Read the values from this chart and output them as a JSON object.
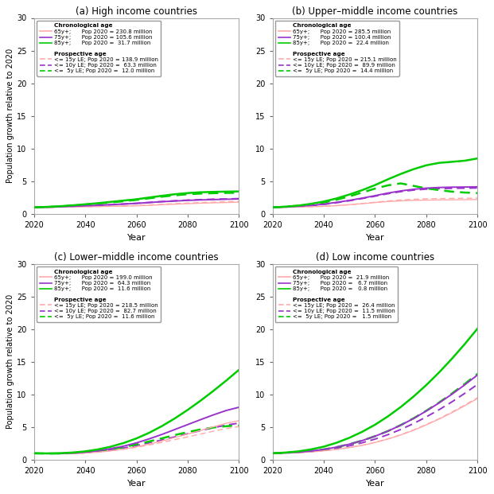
{
  "panels": [
    {
      "title": "(a) High income countries",
      "ylim": [
        0,
        30
      ],
      "legend_chron": {
        "header": "Chronological age",
        "entries": [
          {
            "label": "65y+;      Pop 2020 = 230.8 million",
            "color": "#ffaaaa",
            "linestyle": "solid"
          },
          {
            "label": "75y+;      Pop 2020 = 105.6 million",
            "color": "#9933cc",
            "linestyle": "solid"
          },
          {
            "label": "85y+;      Pop 2020 =  31.7 million",
            "color": "#00cc00",
            "linestyle": "solid"
          }
        ]
      },
      "legend_prosp": {
        "header": "Prospective age",
        "entries": [
          {
            "label": "<= 15y LE; Pop 2020 = 138.9 million",
            "color": "#ffaaaa",
            "linestyle": "dashed"
          },
          {
            "label": "<= 10y LE; Pop 2020 =  63.3 million",
            "color": "#9933cc",
            "linestyle": "dashed"
          },
          {
            "label": "<=  5y LE; Pop 2020 =  12.0 million",
            "color": "#00cc00",
            "linestyle": "dashed"
          }
        ]
      },
      "series": {
        "chron_65": [
          1.0,
          1.03,
          1.06,
          1.09,
          1.12,
          1.15,
          1.18,
          1.2,
          1.25,
          1.32,
          1.42,
          1.5,
          1.58,
          1.65,
          1.7,
          1.75,
          1.8
        ],
        "chron_75": [
          1.0,
          1.05,
          1.1,
          1.18,
          1.25,
          1.33,
          1.42,
          1.52,
          1.62,
          1.75,
          1.88,
          1.98,
          2.08,
          2.15,
          2.2,
          2.25,
          2.3
        ],
        "chron_85": [
          1.0,
          1.08,
          1.18,
          1.32,
          1.48,
          1.65,
          1.85,
          2.05,
          2.25,
          2.52,
          2.78,
          3.02,
          3.2,
          3.32,
          3.38,
          3.42,
          3.45
        ],
        "prosp_15": [
          1.0,
          1.02,
          1.04,
          1.07,
          1.1,
          1.13,
          1.17,
          1.21,
          1.28,
          1.38,
          1.48,
          1.58,
          1.67,
          1.75,
          1.82,
          1.88,
          1.93
        ],
        "prosp_10": [
          1.0,
          1.04,
          1.09,
          1.16,
          1.24,
          1.32,
          1.42,
          1.52,
          1.63,
          1.76,
          1.9,
          2.02,
          2.12,
          2.2,
          2.26,
          2.3,
          2.35
        ],
        "prosp_5": [
          1.0,
          1.07,
          1.15,
          1.28,
          1.42,
          1.58,
          1.76,
          1.95,
          2.15,
          2.4,
          2.65,
          2.85,
          3.02,
          3.12,
          3.18,
          3.22,
          3.25
        ]
      }
    },
    {
      "title": "(b) Upper–middle income countries",
      "ylim": [
        0,
        30
      ],
      "legend_chron": {
        "header": "Chronological age",
        "entries": [
          {
            "label": "65y+;      Pop 2020 = 285.5 million",
            "color": "#ffaaaa",
            "linestyle": "solid"
          },
          {
            "label": "75y+;      Pop 2020 = 100.4 million",
            "color": "#9933cc",
            "linestyle": "solid"
          },
          {
            "label": "85y+;      Pop 2020 =  22.4 million",
            "color": "#00cc00",
            "linestyle": "solid"
          }
        ]
      },
      "legend_prosp": {
        "header": "Prospective age",
        "entries": [
          {
            "label": "<= 15y LE; Pop 2020 = 215.1 million",
            "color": "#ffaaaa",
            "linestyle": "dashed"
          },
          {
            "label": "<= 10y LE; Pop 2020 =  89.9 million",
            "color": "#9933cc",
            "linestyle": "dashed"
          },
          {
            "label": "<=  5y LE; Pop 2020 =  14.4 million",
            "color": "#00cc00",
            "linestyle": "dashed"
          }
        ]
      },
      "series": {
        "chron_65": [
          1.0,
          1.03,
          1.07,
          1.12,
          1.18,
          1.28,
          1.42,
          1.58,
          1.75,
          1.9,
          2.0,
          2.08,
          2.12,
          2.15,
          2.17,
          2.18,
          2.2
        ],
        "chron_75": [
          1.0,
          1.08,
          1.18,
          1.32,
          1.5,
          1.78,
          2.08,
          2.42,
          2.8,
          3.2,
          3.52,
          3.78,
          3.95,
          4.05,
          4.1,
          4.12,
          4.15
        ],
        "chron_85": [
          1.0,
          1.12,
          1.28,
          1.55,
          1.9,
          2.38,
          2.98,
          3.65,
          4.42,
          5.3,
          6.12,
          6.85,
          7.45,
          7.82,
          7.98,
          8.15,
          8.5
        ],
        "prosp_15": [
          1.0,
          1.02,
          1.05,
          1.1,
          1.17,
          1.28,
          1.42,
          1.6,
          1.8,
          2.0,
          2.15,
          2.25,
          2.32,
          2.36,
          2.38,
          2.4,
          2.42
        ],
        "prosp_10": [
          1.0,
          1.06,
          1.14,
          1.28,
          1.46,
          1.72,
          2.02,
          2.36,
          2.72,
          3.1,
          3.42,
          3.65,
          3.8,
          3.88,
          3.92,
          3.95,
          3.98
        ],
        "prosp_5": [
          1.0,
          1.1,
          1.24,
          1.45,
          1.75,
          2.18,
          2.7,
          3.28,
          3.88,
          4.38,
          4.68,
          4.3,
          3.92,
          3.65,
          3.42,
          3.28,
          3.2
        ]
      }
    },
    {
      "title": "(c) Lower–middle income countries",
      "ylim": [
        0,
        30
      ],
      "legend_chron": {
        "header": "Chronological age",
        "entries": [
          {
            "label": "65y+;      Pop 2020 = 199.0 million",
            "color": "#ffaaaa",
            "linestyle": "solid"
          },
          {
            "label": "75y+;      Pop 2020 =  64.3 million",
            "color": "#9933cc",
            "linestyle": "solid"
          },
          {
            "label": "85y+;      Pop 2020 =  11.6 million",
            "color": "#00cc00",
            "linestyle": "solid"
          }
        ]
      },
      "legend_prosp": {
        "header": "Prospective age",
        "entries": [
          {
            "label": "<= 15y LE; Pop 2020 = 218.5 million",
            "color": "#ffaaaa",
            "linestyle": "dashed"
          },
          {
            "label": "<= 10y LE; Pop 2020 =  82.7 million",
            "color": "#9933cc",
            "linestyle": "dashed"
          },
          {
            "label": "<=  5y LE; Pop 2020 =  11.6 million",
            "color": "#00cc00",
            "linestyle": "dashed"
          }
        ]
      },
      "series": {
        "chron_65": [
          1.0,
          0.97,
          0.95,
          0.98,
          1.05,
          1.18,
          1.38,
          1.65,
          2.0,
          2.42,
          2.9,
          3.42,
          3.95,
          4.5,
          5.05,
          5.6,
          6.0
        ],
        "chron_75": [
          1.0,
          0.98,
          0.99,
          1.05,
          1.18,
          1.4,
          1.72,
          2.1,
          2.6,
          3.22,
          3.9,
          4.65,
          5.4,
          6.15,
          6.88,
          7.55,
          8.05
        ],
        "chron_85": [
          1.0,
          0.99,
          1.02,
          1.12,
          1.3,
          1.6,
          2.02,
          2.58,
          3.28,
          4.15,
          5.18,
          6.35,
          7.65,
          9.05,
          10.55,
          12.12,
          13.78
        ],
        "prosp_15": [
          1.0,
          0.97,
          0.95,
          0.97,
          1.05,
          1.18,
          1.38,
          1.62,
          1.92,
          2.28,
          2.68,
          3.1,
          3.52,
          3.95,
          4.38,
          4.8,
          5.1
        ],
        "prosp_10": [
          1.0,
          0.97,
          0.96,
          1.0,
          1.1,
          1.28,
          1.52,
          1.82,
          2.18,
          2.6,
          3.05,
          3.52,
          4.0,
          4.48,
          4.92,
          5.32,
          5.62
        ],
        "prosp_5": [
          1.0,
          0.97,
          0.97,
          1.02,
          1.14,
          1.34,
          1.62,
          1.96,
          2.36,
          2.82,
          3.3,
          3.8,
          4.25,
          4.65,
          4.95,
          5.15,
          5.28
        ]
      }
    },
    {
      "title": "(d) Low income countries",
      "ylim": [
        0,
        30
      ],
      "legend_chron": {
        "header": "Chronological age",
        "entries": [
          {
            "label": "65y+;      Pop 2020 =  21.9 million",
            "color": "#ffaaaa",
            "linestyle": "solid"
          },
          {
            "label": "75y+;      Pop 2020 =   6.7 million",
            "color": "#9933cc",
            "linestyle": "solid"
          },
          {
            "label": "85y+;      Pop 2020 =   0.8 million",
            "color": "#00cc00",
            "linestyle": "solid"
          }
        ]
      },
      "legend_prosp": {
        "header": "Prospective age",
        "entries": [
          {
            "label": "<= 15y LE; Pop 2020 =  26.4 million",
            "color": "#ffaaaa",
            "linestyle": "dashed"
          },
          {
            "label": "<= 10y LE; Pop 2020 =  11.5 million",
            "color": "#9933cc",
            "linestyle": "dashed"
          },
          {
            "label": "<=  5y LE; Pop 2020 =   1.5 million",
            "color": "#00cc00",
            "linestyle": "dashed"
          }
        ]
      },
      "series": {
        "chron_65": [
          1.0,
          1.05,
          1.12,
          1.22,
          1.38,
          1.6,
          1.88,
          2.22,
          2.65,
          3.18,
          3.8,
          4.52,
          5.35,
          6.25,
          7.22,
          8.28,
          9.4
        ],
        "chron_75": [
          1.0,
          1.08,
          1.18,
          1.35,
          1.6,
          1.95,
          2.4,
          2.95,
          3.62,
          4.4,
          5.3,
          6.32,
          7.48,
          8.72,
          10.05,
          11.48,
          13.0
        ],
        "chron_85": [
          1.0,
          1.12,
          1.3,
          1.6,
          2.02,
          2.62,
          3.38,
          4.3,
          5.38,
          6.65,
          8.08,
          9.68,
          11.45,
          13.38,
          15.48,
          17.72,
          20.1
        ],
        "prosp_15": [
          1.0,
          1.05,
          1.12,
          1.22,
          1.38,
          1.6,
          1.9,
          2.25,
          2.68,
          3.22,
          3.85,
          4.58,
          5.42,
          6.32,
          7.32,
          8.4,
          9.52
        ],
        "prosp_10": [
          1.0,
          1.06,
          1.15,
          1.28,
          1.48,
          1.78,
          2.15,
          2.62,
          3.18,
          3.85,
          4.65,
          5.55,
          6.58,
          7.68,
          8.88,
          10.18,
          11.55
        ],
        "prosp_5": [
          1.0,
          1.08,
          1.18,
          1.35,
          1.6,
          1.95,
          2.4,
          2.95,
          3.62,
          4.4,
          5.32,
          6.35,
          7.52,
          8.78,
          10.15,
          11.62,
          13.18
        ]
      }
    }
  ],
  "years": [
    2020,
    2025,
    2030,
    2035,
    2040,
    2045,
    2050,
    2055,
    2060,
    2065,
    2070,
    2075,
    2080,
    2085,
    2090,
    2095,
    2100
  ],
  "ylabel": "Population growth relative to 2020",
  "xlabel": "Year",
  "line_colors": {
    "pink": "#ffaaaa",
    "purple": "#9933cc",
    "green": "#00cc00"
  }
}
